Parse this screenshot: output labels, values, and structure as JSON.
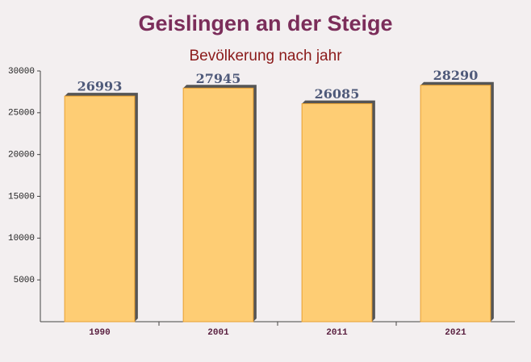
{
  "chart_data": {
    "type": "bar",
    "title": "Geislingen an der Steige",
    "subtitle": "Bevölkerung nach jahr",
    "categories": [
      "1990",
      "2001",
      "2011",
      "2021"
    ],
    "values": [
      26993,
      27945,
      26085,
      28290
    ],
    "color": "#ffc966",
    "ylim": [
      0,
      30000
    ],
    "yticks": [
      5000,
      10000,
      15000,
      20000,
      25000,
      30000
    ],
    "grid": false
  }
}
